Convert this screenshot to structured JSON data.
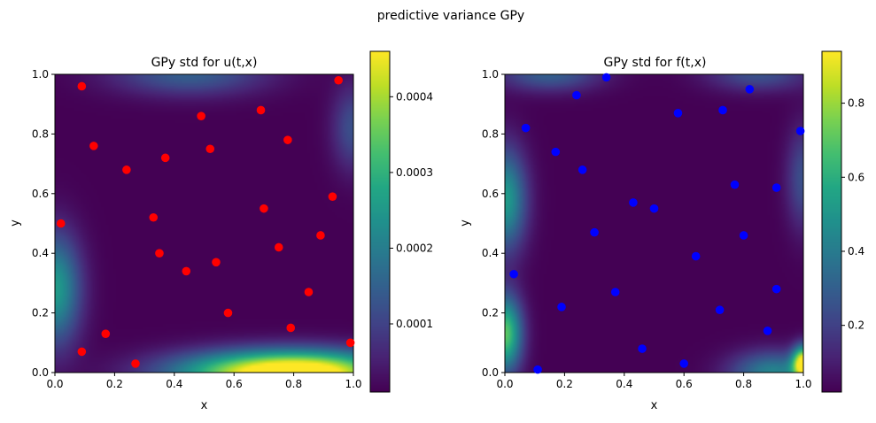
{
  "figure": {
    "suptitle": "predictive variance GPy"
  },
  "chart_data": [
    {
      "type": "heatmap",
      "title": "GPy std for u(t,x)",
      "xlabel": "x",
      "ylabel": "y",
      "xlim": [
        0,
        1
      ],
      "ylim": [
        0,
        1
      ],
      "x_ticks": [
        "0.0",
        "0.2",
        "0.4",
        "0.6",
        "0.8",
        "1.0"
      ],
      "y_ticks": [
        "0.0",
        "0.2",
        "0.4",
        "0.6",
        "0.8",
        "1.0"
      ],
      "colormap": "viridis",
      "colorbar": {
        "range": [
          1e-05,
          0.00046
        ],
        "ticks": [
          0.0001,
          0.0002,
          0.0003,
          0.0004
        ],
        "tick_labels": [
          "0.0001",
          "0.0002",
          "0.0003",
          "0.0004"
        ]
      },
      "points_color": "#ff0000",
      "points": [
        [
          0.09,
          0.96
        ],
        [
          0.95,
          0.98
        ],
        [
          0.49,
          0.86
        ],
        [
          0.69,
          0.88
        ],
        [
          0.13,
          0.76
        ],
        [
          0.78,
          0.78
        ],
        [
          0.52,
          0.75
        ],
        [
          0.37,
          0.72
        ],
        [
          0.24,
          0.68
        ],
        [
          0.93,
          0.59
        ],
        [
          0.7,
          0.55
        ],
        [
          0.33,
          0.52
        ],
        [
          0.02,
          0.5
        ],
        [
          0.89,
          0.46
        ],
        [
          0.75,
          0.42
        ],
        [
          0.35,
          0.4
        ],
        [
          0.54,
          0.37
        ],
        [
          0.44,
          0.34
        ],
        [
          0.85,
          0.27
        ],
        [
          0.58,
          0.2
        ],
        [
          0.79,
          0.15
        ],
        [
          0.17,
          0.13
        ],
        [
          0.99,
          0.1
        ],
        [
          0.09,
          0.07
        ],
        [
          0.27,
          0.03
        ]
      ],
      "field_peaks": [
        {
          "x": 0.86,
          "y": 0.0,
          "amp": 1.0,
          "sx": 0.2,
          "sy": 0.05
        },
        {
          "x": 0.6,
          "y": 0.0,
          "amp": 0.5,
          "sx": 0.2,
          "sy": 0.05
        },
        {
          "x": 0.0,
          "y": 0.28,
          "amp": 0.55,
          "sx": 0.06,
          "sy": 0.13
        },
        {
          "x": 0.45,
          "y": 1.0,
          "amp": 0.3,
          "sx": 0.18,
          "sy": 0.05
        },
        {
          "x": 1.0,
          "y": 0.82,
          "amp": 0.25,
          "sx": 0.05,
          "sy": 0.1
        }
      ]
    },
    {
      "type": "heatmap",
      "title": "GPy std for f(t,x)",
      "xlabel": "x",
      "ylabel": "y",
      "xlim": [
        0,
        1
      ],
      "ylim": [
        0,
        1
      ],
      "x_ticks": [
        "0.0",
        "0.2",
        "0.4",
        "0.6",
        "0.8",
        "1.0"
      ],
      "y_ticks": [
        "0.0",
        "0.2",
        "0.4",
        "0.6",
        "0.8",
        "1.0"
      ],
      "colormap": "viridis",
      "colorbar": {
        "range": [
          0.02,
          0.94
        ],
        "ticks": [
          0.2,
          0.4,
          0.6,
          0.8
        ],
        "tick_labels": [
          "0.2",
          "0.4",
          "0.6",
          "0.8"
        ]
      },
      "points_color": "#0000ff",
      "points": [
        [
          0.34,
          0.99
        ],
        [
          0.82,
          0.95
        ],
        [
          0.24,
          0.93
        ],
        [
          0.58,
          0.87
        ],
        [
          0.73,
          0.88
        ],
        [
          0.07,
          0.82
        ],
        [
          0.99,
          0.81
        ],
        [
          0.17,
          0.74
        ],
        [
          0.26,
          0.68
        ],
        [
          0.77,
          0.63
        ],
        [
          0.91,
          0.62
        ],
        [
          0.43,
          0.57
        ],
        [
          0.5,
          0.55
        ],
        [
          0.3,
          0.47
        ],
        [
          0.8,
          0.46
        ],
        [
          0.64,
          0.39
        ],
        [
          0.03,
          0.33
        ],
        [
          0.91,
          0.28
        ],
        [
          0.37,
          0.27
        ],
        [
          0.19,
          0.22
        ],
        [
          0.72,
          0.21
        ],
        [
          0.88,
          0.14
        ],
        [
          0.46,
          0.08
        ],
        [
          0.6,
          0.03
        ],
        [
          0.11,
          0.01
        ]
      ],
      "field_peaks": [
        {
          "x": 0.0,
          "y": 0.58,
          "amp": 0.55,
          "sx": 0.05,
          "sy": 0.12
        },
        {
          "x": 0.0,
          "y": 0.13,
          "amp": 0.75,
          "sx": 0.04,
          "sy": 0.09
        },
        {
          "x": 1.0,
          "y": 0.03,
          "amp": 1.0,
          "sx": 0.025,
          "sy": 0.04
        },
        {
          "x": 0.9,
          "y": 0.0,
          "amp": 0.45,
          "sx": 0.1,
          "sy": 0.05
        },
        {
          "x": 0.15,
          "y": 1.0,
          "amp": 0.3,
          "sx": 0.12,
          "sy": 0.04
        },
        {
          "x": 0.85,
          "y": 1.0,
          "amp": 0.25,
          "sx": 0.12,
          "sy": 0.04
        },
        {
          "x": 1.0,
          "y": 0.65,
          "amp": 0.25,
          "sx": 0.04,
          "sy": 0.12
        }
      ]
    }
  ]
}
